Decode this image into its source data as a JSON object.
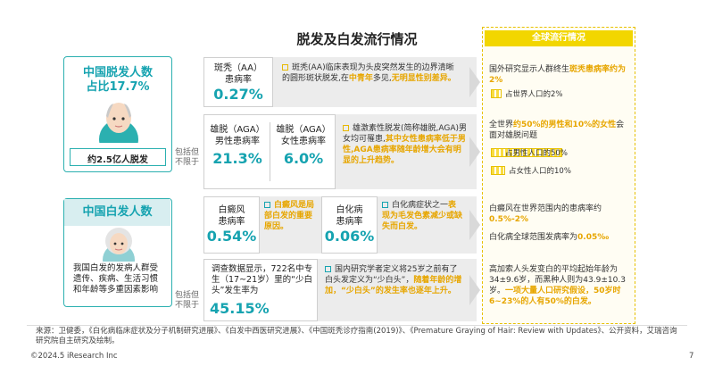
{
  "title": "脱发及白发流行情况",
  "hair_loss": {
    "title": "中国脱发人数",
    "share_label": "占比17.7%",
    "count": "约2.5亿人脱发",
    "note": "包括但不限于",
    "aa": {
      "label1": "斑秃（AA）",
      "label2": "患病率",
      "value": "0.27%",
      "desc_a": "斑秃(AA)临床表现为头皮突然发生的边界清晰的圆形斑状脱发,在",
      "desc_b": "中青年",
      "desc_c": "多见,",
      "desc_d": "无明显性别差异。"
    },
    "aga": {
      "male_label1": "雄脱（AGA）",
      "male_label2": "男性患病率",
      "male_value": "21.3%",
      "female_label1": "雄脱（AGA）",
      "female_label2": "女性患病率",
      "female_value": "6.0%",
      "desc_a": "雄激素性脱发(简称雄脱,AGA)男女均可罹患,",
      "desc_b": "其中女性患病率低于男性,AGA患病率随年龄增大会有明显的上升趋势。"
    }
  },
  "white_hair": {
    "title": "中国白发人数",
    "desc": "我国白发的发病人群受遗传、疾病、生活习惯和年龄等多重因素影响",
    "note": "包括但不限于",
    "vitiligo": {
      "label1": "白癜风",
      "label2": "患病率",
      "value": "0.54%",
      "desc": "白癜风是局部白发的重要原因。"
    },
    "albinism": {
      "label1": "白化病",
      "label2": "患病率",
      "value": "0.06%",
      "desc_a": "白化病症状之一",
      "desc_b": "表现为毛发色素减少或缺失而白发。"
    },
    "premature": {
      "desc1": "调查数据显示，722名中专生（17~21岁）里的“少白头”发生率为",
      "value": "45.15%",
      "desc_a": "国内研究学者定义将25岁之前有了白头发定义为“少白头”，",
      "desc_b": "随着年龄的增加，“少白头”的发生率也逐年上升。"
    }
  },
  "global": {
    "header": "全球流行情况",
    "g1_a": "国外研究显示人群终生",
    "g1_b": "斑秃患病率约为2%",
    "g1_bar_label": "占世界人口的2%",
    "g1_bar_value": 2,
    "g2_a": "全世界",
    "g2_b": "约50%的男性和10%的女性",
    "g2_c": "会面对雄脱问题",
    "g2_bar1_label": "占男性人口的50%",
    "g2_bar1_value": 50,
    "g2_bar2_label": "占女性人口的10%",
    "g2_bar2_value": 10,
    "g3_a": "白癜风在世界范围内的患病率约",
    "g3_b": "0.5%-2%",
    "g3_c": "白化病全球范围发病率为",
    "g3_d": "0.05‰",
    "g4_a": "高加索人头发变白的平均起始年龄为34±9.6岁，而黑种人则为43.9±10.3岁。",
    "g4_b": "一项大量人口研究假设，50岁时6~23%的人有50%的白发。"
  },
  "footer": {
    "source": "来源：卫健委，《白化病临床症状及分子机制研究进展》、《白发中西医研究进展》、《中国斑秃诊疗指南(2019)》、《Premature Graying of Hair: Review with Updates》、公开资料，艾瑞咨询研究院自主研究及绘制。",
    "copyright": "©2024.5 iResearch Inc",
    "page": "7"
  },
  "colors": {
    "teal": "#16a3b0",
    "yellow": "#f2d600",
    "highlight": "#e7a600"
  },
  "icons": [
    "male-avatar-icon",
    "elderly-woman-avatar-icon"
  ]
}
